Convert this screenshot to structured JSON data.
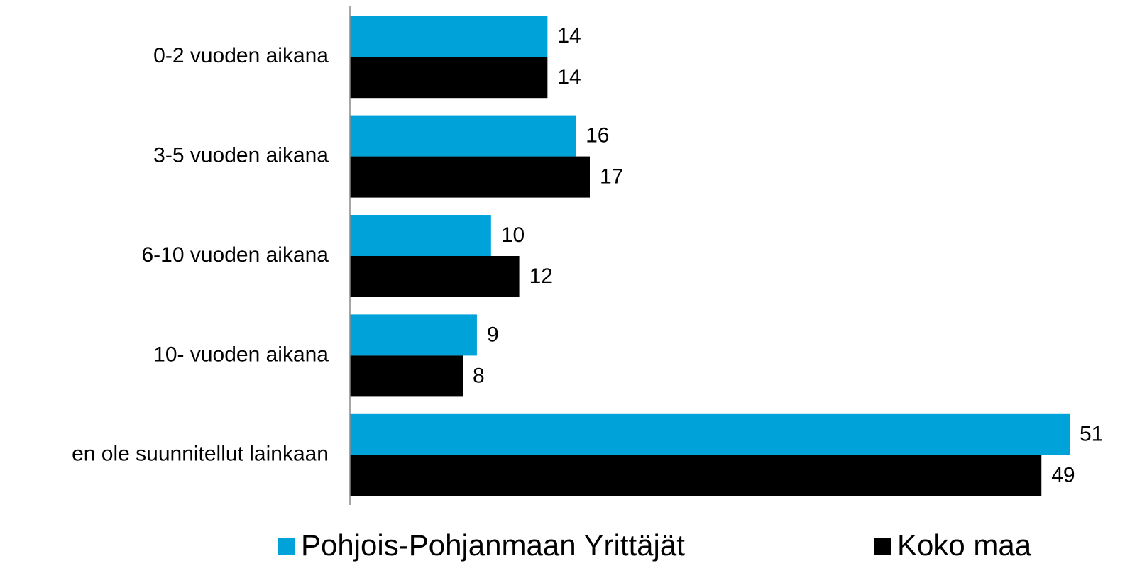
{
  "chart_data": {
    "type": "bar",
    "orientation": "horizontal",
    "categories": [
      "0-2 vuoden aikana",
      "3-5 vuoden aikana",
      "6-10 vuoden aikana",
      "10- vuoden aikana",
      "en ole suunnitellut  lainkaan"
    ],
    "series": [
      {
        "name": "Pohjois-Pohjanmaan Yrittäjät",
        "color": "#00a3d9",
        "values": [
          14,
          16,
          10,
          9,
          51
        ]
      },
      {
        "name": "Koko maa",
        "color": "#000000",
        "values": [
          14,
          17,
          12,
          8,
          49
        ]
      }
    ],
    "xlim": [
      0,
      51
    ]
  }
}
